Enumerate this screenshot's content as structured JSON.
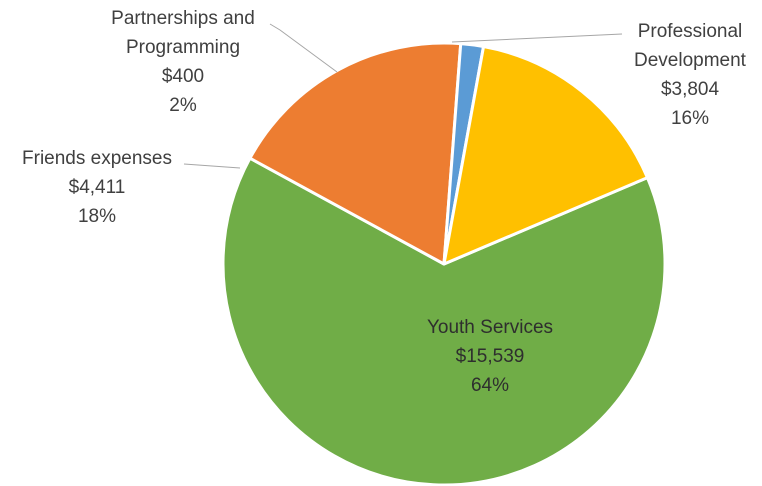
{
  "chart_data": {
    "type": "pie",
    "title": "",
    "slices": [
      {
        "label_lines": [
          "Youth Services"
        ],
        "amount": "$15,539",
        "percent": "64%",
        "value": 15539,
        "color": "#70AD47"
      },
      {
        "label_lines": [
          "Friends expenses"
        ],
        "amount": "$4,411",
        "percent": "18%",
        "value": 4411,
        "color": "#ED7D31"
      },
      {
        "label_lines": [
          "Partnerships and",
          "Programming"
        ],
        "amount": "$400",
        "percent": "2%",
        "value": 400,
        "color": "#5B9BD5"
      },
      {
        "label_lines": [
          "Professional",
          "Development"
        ],
        "amount": "$3,804",
        "percent": "16%",
        "value": 3804,
        "color": "#FFC000"
      }
    ],
    "legend": "none",
    "leader_line_color": "#A6A6A6"
  }
}
